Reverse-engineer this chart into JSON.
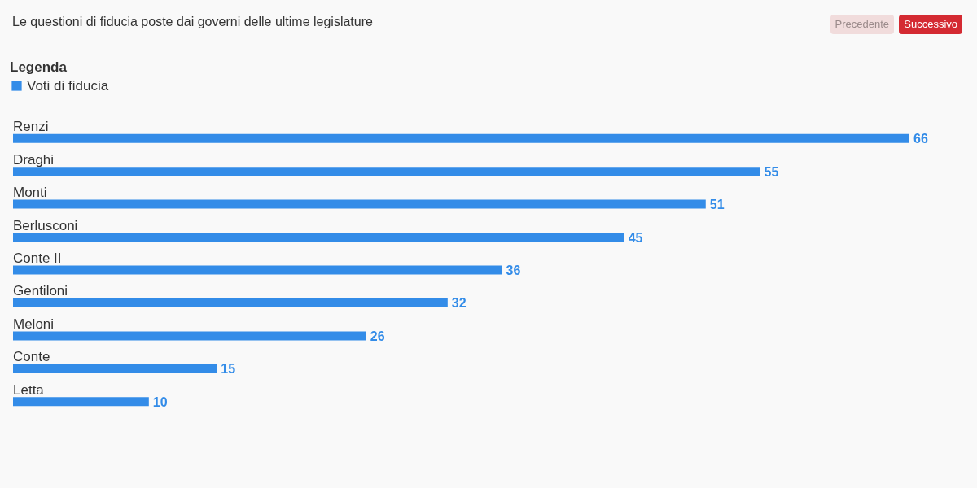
{
  "chart_data": {
    "type": "bar",
    "orientation": "horizontal",
    "title": "Le questioni di fiducia poste dai governi delle ultime legislature",
    "legend_title": "Legenda",
    "legend": "top left",
    "data_labels": true,
    "annotations": [
      "Precedente",
      "Successivo"
    ],
    "categories": [
      "Renzi",
      "Draghi",
      "Monti",
      "Berlusconi",
      "Conte II",
      "Gentiloni",
      "Meloni",
      "Conte",
      "Letta"
    ],
    "series": [
      {
        "name": "Voti di fiducia",
        "color": "#338ce8",
        "values": [
          66,
          55,
          51,
          45,
          36,
          32,
          26,
          15,
          10
        ]
      }
    ]
  }
}
